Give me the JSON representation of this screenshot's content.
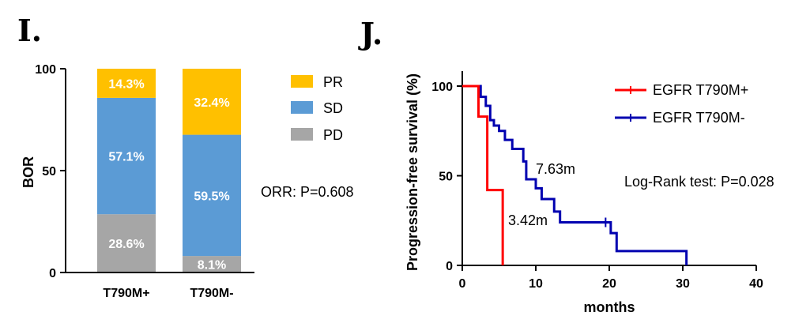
{
  "chart_data": [
    {
      "panel_label": "I.",
      "type": "bar",
      "stacked": true,
      "categories": [
        "T790M+",
        "T790M-"
      ],
      "series": [
        {
          "name": "PD",
          "color": "#a6a6a6",
          "values": [
            28.6,
            8.1
          ],
          "labels": [
            "28.6%",
            "8.1%"
          ]
        },
        {
          "name": "SD",
          "color": "#5b9bd5",
          "values": [
            57.1,
            59.5
          ],
          "labels": [
            "57.1%",
            "59.5%"
          ]
        },
        {
          "name": "PR",
          "color": "#ffc000",
          "values": [
            14.3,
            32.4
          ],
          "labels": [
            "14.3%",
            "32.4%"
          ]
        }
      ],
      "legend": [
        {
          "name": "PR",
          "color": "#ffc000"
        },
        {
          "name": "SD",
          "color": "#5b9bd5"
        },
        {
          "name": "PD",
          "color": "#a6a6a6"
        }
      ],
      "ylabel": "BOR",
      "ylim": [
        0,
        100
      ],
      "yticks": [
        "0",
        "50",
        "100"
      ],
      "annotation": "ORR: P=0.608"
    },
    {
      "panel_label": "J.",
      "type": "line",
      "step": true,
      "xlabel": "months",
      "ylabel": "Progression-free survival (%)",
      "xlim": [
        0,
        40
      ],
      "ylim": [
        0,
        100
      ],
      "xticks": [
        "0",
        "10",
        "20",
        "30",
        "40"
      ],
      "yticks": [
        "0",
        "50",
        "100"
      ],
      "series": [
        {
          "name": "EGFR T790M+",
          "color": "#ff0000",
          "x": [
            0,
            1.5,
            2.2,
            3.4,
            5.5
          ],
          "y": [
            100,
            100,
            83,
            42,
            0
          ]
        },
        {
          "name": "EGFR T790M-",
          "color": "#0000b0",
          "x": [
            0,
            1.5,
            2.5,
            3.2,
            3.8,
            4.3,
            5.0,
            5.8,
            6.8,
            8.3,
            8.7,
            10.0,
            10.8,
            12.5,
            13.3,
            19.8,
            20.2,
            21.0,
            30.5
          ],
          "y": [
            100,
            100,
            94,
            89,
            81,
            78,
            75,
            70,
            65,
            58,
            48,
            43,
            37,
            30,
            24,
            24,
            18,
            8,
            0
          ]
        }
      ],
      "censored": [
        {
          "series": "EGFR T790M-",
          "x": 19.5,
          "y": 24
        }
      ],
      "annotations": [
        "7.63m",
        "3.42m",
        "Log-Rank test: P=0.028"
      ]
    }
  ]
}
